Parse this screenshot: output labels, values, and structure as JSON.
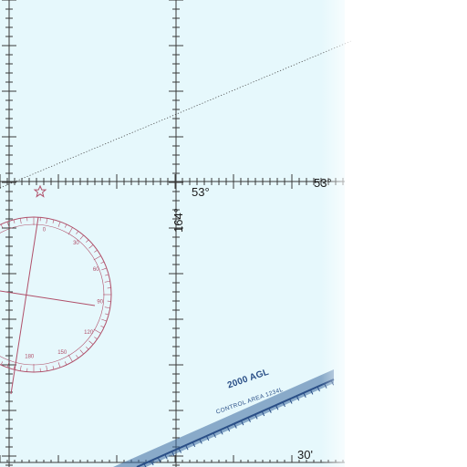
{
  "map": {
    "water_color": "#e6f8fc",
    "grid_color": "#3a3a3a",
    "rose_color": "#b0506a",
    "airspace_color": "#3d6a9e"
  },
  "labels": {
    "lat_center": "53°",
    "lat_right": "53°",
    "lon": "164°",
    "minute": "30'",
    "airspace_alt": "2000 AGL",
    "airspace_name": "CONTROL AREA 1234L"
  },
  "compass_rose": {
    "tick_labels": [
      "0",
      "30",
      "60",
      "90",
      "120",
      "150",
      "180"
    ]
  },
  "icons": {
    "airport_symbol": "star-airport-icon"
  }
}
